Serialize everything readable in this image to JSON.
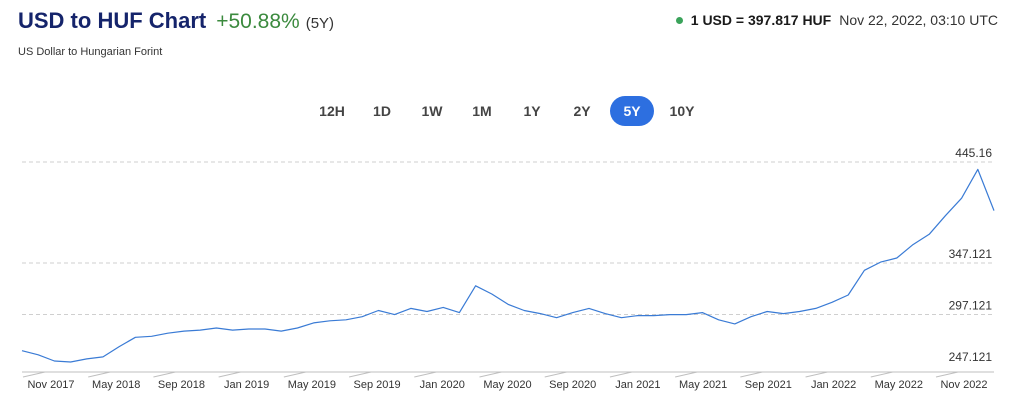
{
  "header": {
    "title": "USD to HUF Chart",
    "change": "+50.88%",
    "period": "(5Y)",
    "subtitle": "US Dollar to Hungarian Forint",
    "rate": "1 USD = 397.817 HUF",
    "timestamp": "Nov 22, 2022, 03:10 UTC"
  },
  "ranges": [
    "12H",
    "1D",
    "1W",
    "1M",
    "1Y",
    "2Y",
    "5Y",
    "10Y"
  ],
  "active_range": "5Y",
  "colors": {
    "accent": "#2d6fe0",
    "line": "#3a7bd5",
    "positive": "#3b8a3e"
  },
  "chart_data": {
    "type": "line",
    "y_ticks": [
      "445.16",
      "347.121",
      "297.121",
      "247.121"
    ],
    "x_ticks": [
      "Nov 2017",
      "May 2018",
      "Sep 2018",
      "Jan 2019",
      "May 2019",
      "Sep 2019",
      "Jan 2020",
      "May 2020",
      "Sep 2020",
      "Jan 2021",
      "May 2021",
      "Sep 2021",
      "Jan 2022",
      "May 2022",
      "Nov 2022"
    ],
    "ylim": [
      247.121,
      445.16
    ],
    "series": [
      {
        "x": [
          "2017-11",
          "2017-12",
          "2018-01",
          "2018-02",
          "2018-03",
          "2018-04",
          "2018-05",
          "2018-06",
          "2018-07",
          "2018-08",
          "2018-09",
          "2018-10",
          "2018-11",
          "2018-12",
          "2019-01",
          "2019-02",
          "2019-03",
          "2019-04",
          "2019-05",
          "2019-06",
          "2019-07",
          "2019-08",
          "2019-09",
          "2019-10",
          "2019-11",
          "2019-12",
          "2020-01",
          "2020-02",
          "2020-03",
          "2020-04",
          "2020-05",
          "2020-06",
          "2020-07",
          "2020-08",
          "2020-09",
          "2020-10",
          "2020-11",
          "2020-12",
          "2021-01",
          "2021-02",
          "2021-03",
          "2021-04",
          "2021-05",
          "2021-06",
          "2021-07",
          "2021-08",
          "2021-09",
          "2021-10",
          "2021-11",
          "2021-12",
          "2022-01",
          "2022-02",
          "2022-03",
          "2022-04",
          "2022-05",
          "2022-06",
          "2022-07",
          "2022-08",
          "2022-09",
          "2022-10",
          "2022-11"
        ],
        "values": [
          262,
          258,
          252,
          251,
          254,
          256,
          266,
          275,
          276,
          279,
          281,
          282,
          284,
          282,
          283,
          283,
          281,
          284,
          289,
          291,
          292,
          295,
          301,
          297,
          303,
          300,
          304,
          299,
          325,
          317,
          307,
          301,
          298,
          294,
          299,
          303,
          298,
          294,
          296,
          296,
          297,
          297,
          299,
          292,
          288,
          295,
          300,
          298,
          300,
          303,
          309,
          316,
          340,
          348,
          352,
          365,
          375,
          393,
          410,
          438,
          398
        ]
      }
    ]
  }
}
